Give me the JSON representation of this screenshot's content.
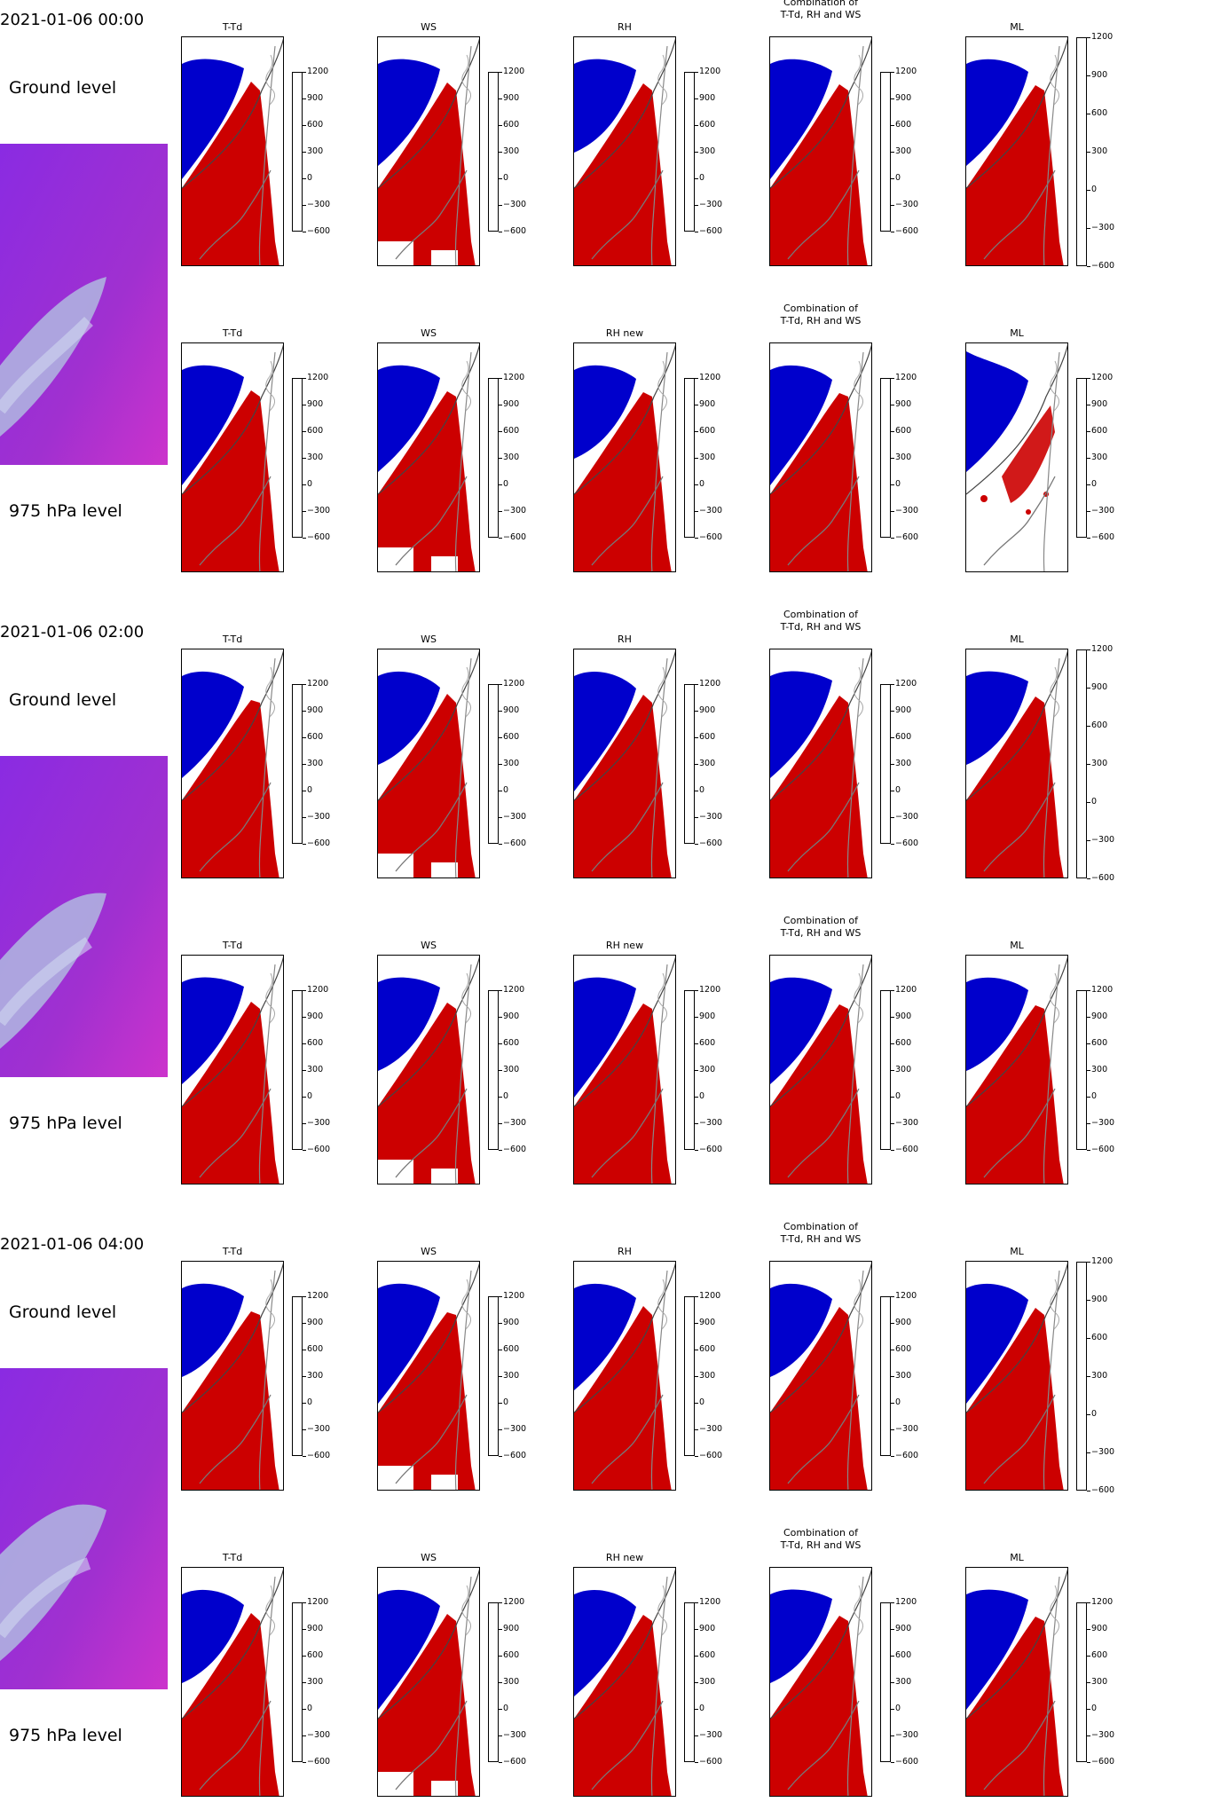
{
  "rows": [
    {
      "time": "2021-01-06 00:00",
      "ground_label": "Ground level",
      "upper_label": "975 hPa level",
      "ground_ml_ticks": [
        "1200",
        "900",
        "600",
        "300",
        "0",
        "−300",
        "−600"
      ],
      "upper_ml_ticks": [
        "1200",
        "900",
        "600",
        "300",
        "0",
        "−300",
        "−600"
      ]
    },
    {
      "time": "2021-01-06 02:00",
      "ground_label": "Ground level",
      "upper_label": "975 hPa level",
      "ground_ml_ticks": [
        "1200",
        "900",
        "600",
        "300",
        "0",
        "−300",
        "−600"
      ],
      "upper_ml_ticks": [
        "1200",
        "900",
        "600",
        "300",
        "0",
        "−300",
        "−600"
      ]
    },
    {
      "time": "2021-01-06 04:00",
      "ground_label": "Ground level",
      "upper_label": "975 hPa level",
      "ground_ml_ticks": [
        "1200",
        "900",
        "600",
        "300",
        "0",
        "−300",
        "−600"
      ],
      "upper_ml_ticks": [
        "1200",
        "900",
        "600",
        "300",
        "0",
        "−300",
        "−600"
      ]
    }
  ],
  "ground_titles": [
    "T-Td",
    "WS",
    "RH",
    "Combination of\nT-Td, RH and WS",
    "ML"
  ],
  "upper_titles": [
    "T-Td",
    "WS",
    "RH new",
    "Combination of\nT-Td, RH and WS",
    "ML"
  ],
  "ticks": [
    "1200",
    "900",
    "600",
    "300",
    "0",
    "−300",
    "−600"
  ],
  "colors": {
    "fog": "#0000cc",
    "low_cloud": "#cc0000",
    "sat_base": "#8a2be2",
    "sat_magenta": "#cc33cc",
    "sat_cloud": "#b0b8e0"
  }
}
